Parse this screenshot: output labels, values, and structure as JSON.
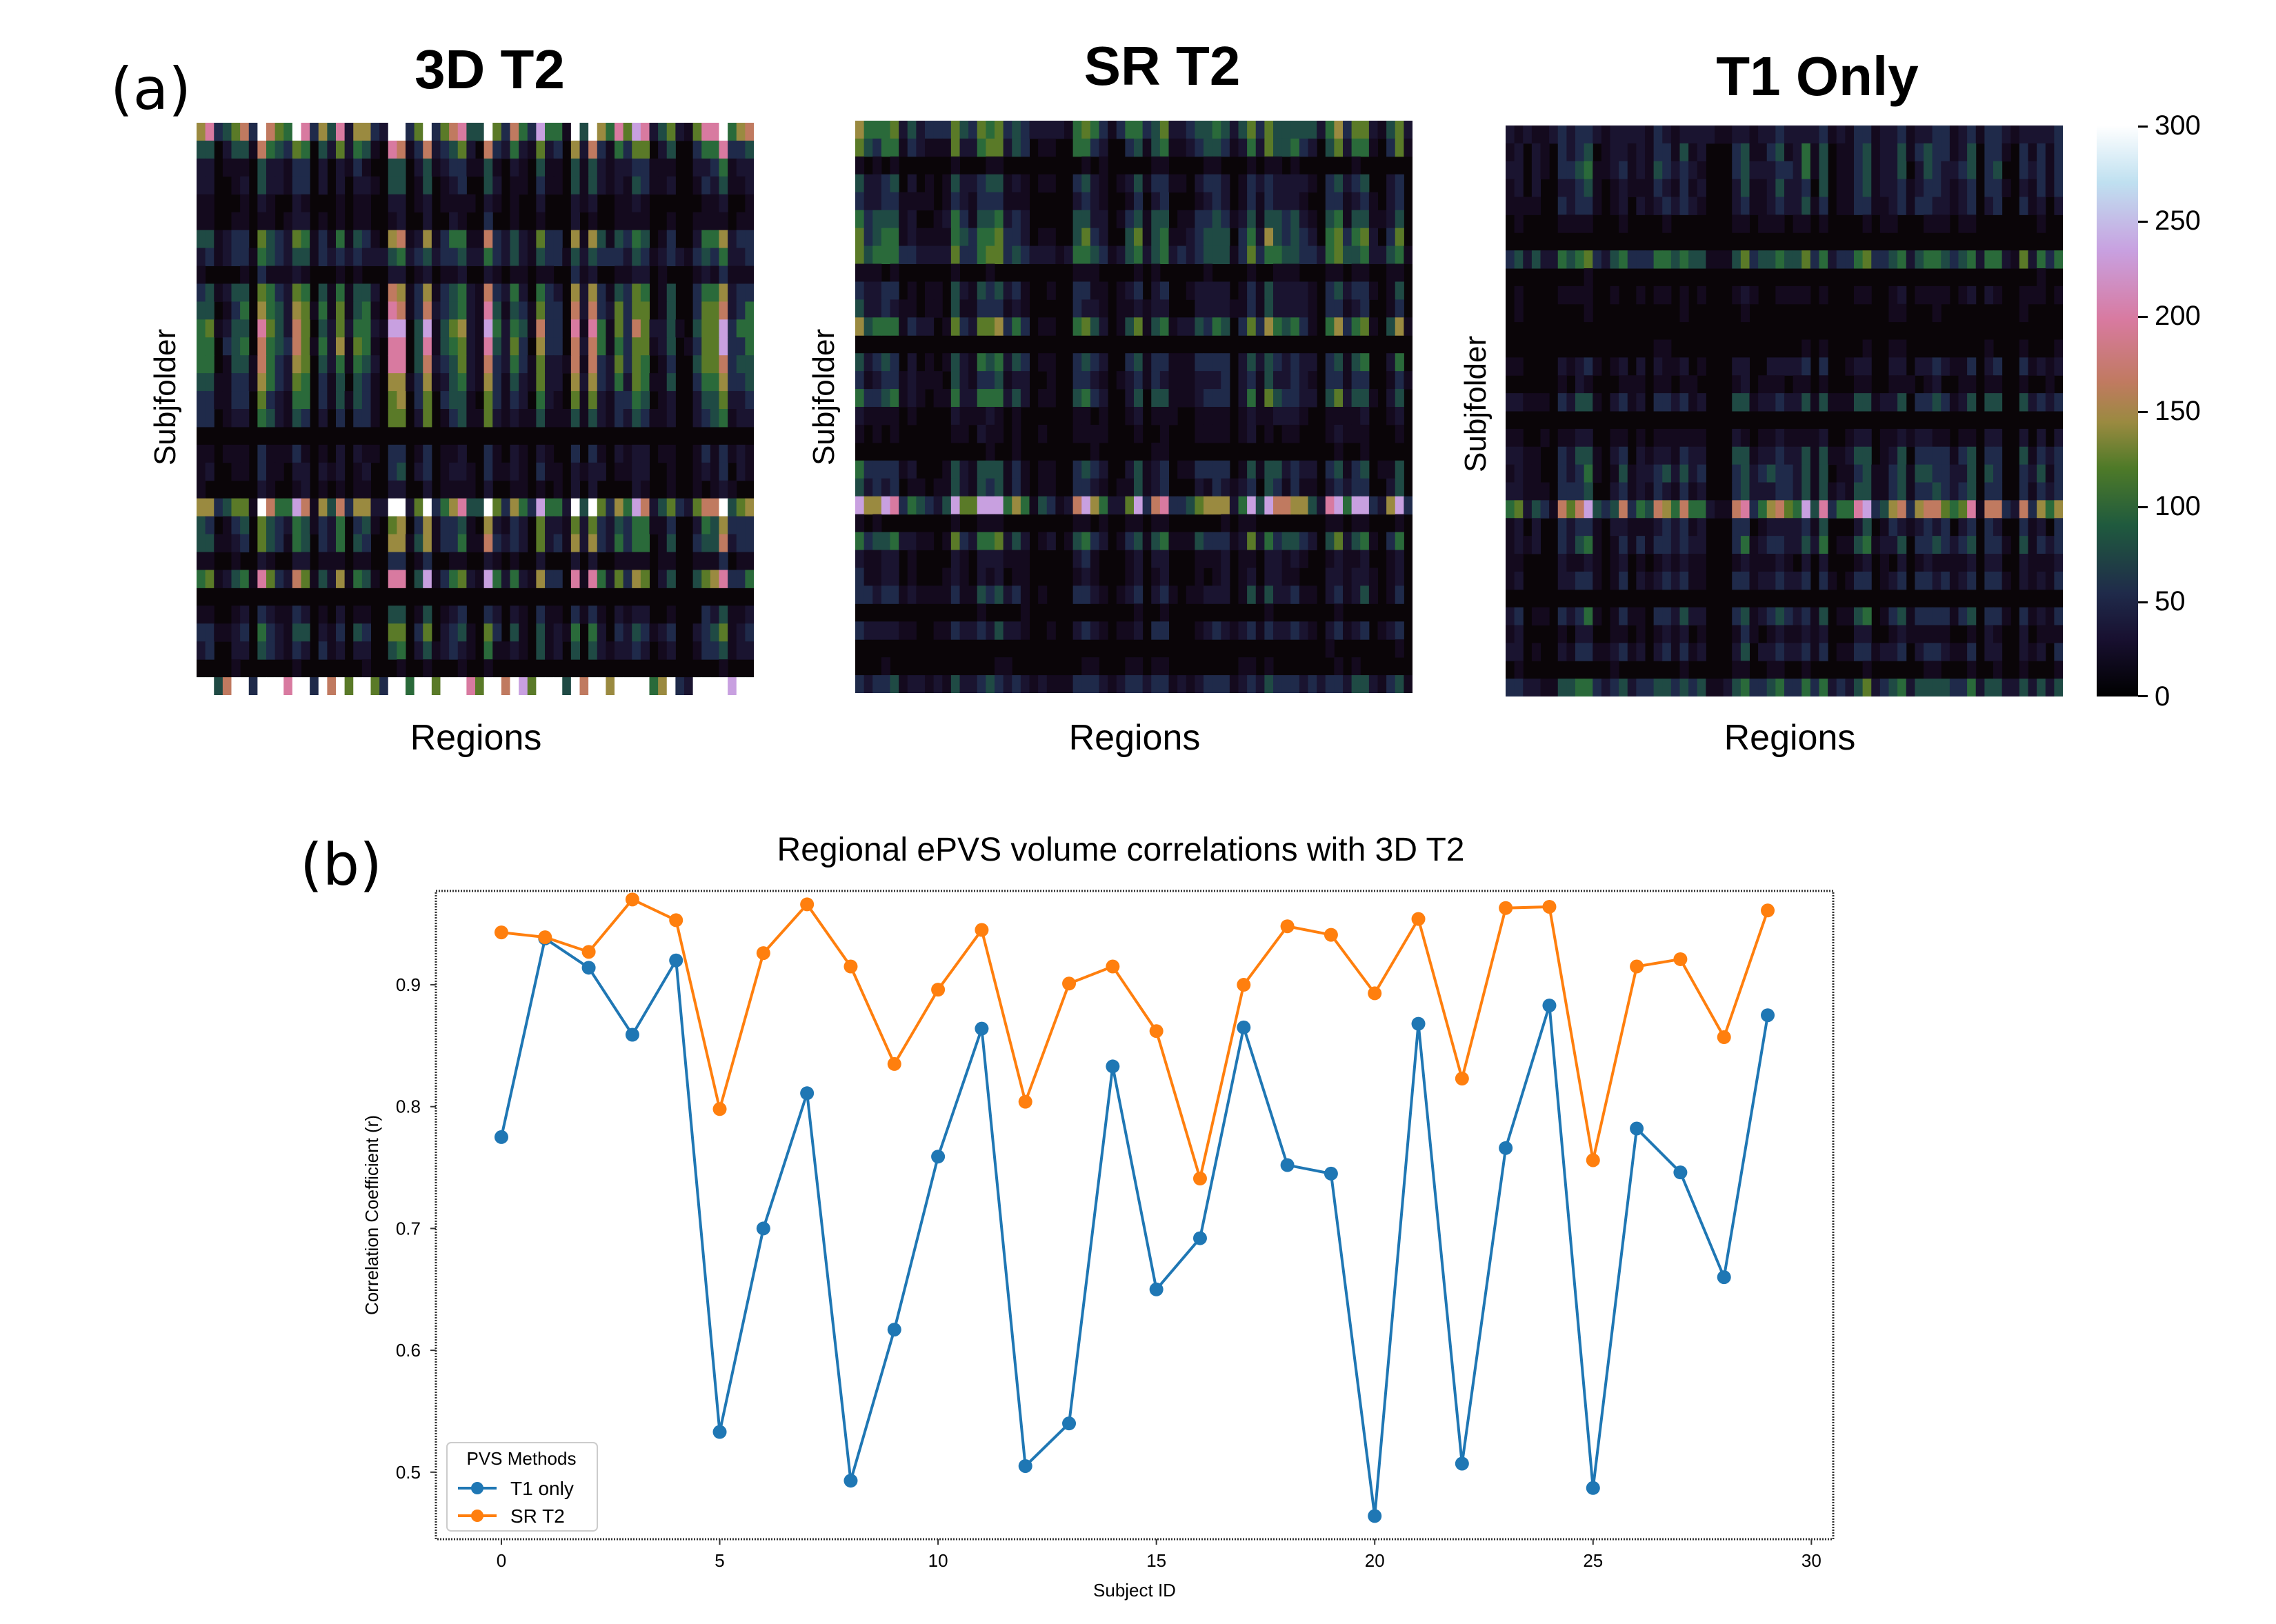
{
  "panel_a_label": "(a)",
  "panel_b_label": "(b)",
  "heatmaps": [
    {
      "title": "3D T2",
      "xlabel": "Regions",
      "ylabel": "Subjfolder",
      "seed": 7,
      "intensity": 1.0
    },
    {
      "title": "SR T2",
      "xlabel": "Regions",
      "ylabel": "Subjfolder",
      "seed": 19,
      "intensity": 0.7
    },
    {
      "title": "T1 Only",
      "xlabel": "Regions",
      "ylabel": "Subjfolder",
      "seed": 31,
      "intensity": 0.5
    }
  ],
  "colorbar": {
    "ticks": [
      "300",
      "250",
      "200",
      "150",
      "100",
      "50",
      "0"
    ],
    "min": 0,
    "max": 300
  },
  "chart_data": {
    "type": "line",
    "title": "Regional ePVS volume correlations with 3D T2",
    "xlabel": "Subject ID",
    "ylabel": "Correlation Coefficient (r)",
    "xlim": [
      -1.5,
      30.5
    ],
    "ylim": [
      0.445,
      0.977
    ],
    "xticks": [
      "0",
      "5",
      "10",
      "15",
      "20",
      "25",
      "30"
    ],
    "yticks": [
      "0.5",
      "0.6",
      "0.7",
      "0.8",
      "0.9"
    ],
    "legend_title": "PVS Methods",
    "legend_position": "lower-left",
    "x": [
      0,
      1,
      2,
      3,
      4,
      5,
      6,
      7,
      8,
      9,
      10,
      11,
      12,
      13,
      14,
      15,
      16,
      17,
      18,
      19,
      20,
      21,
      22,
      23,
      24,
      25,
      26,
      27,
      28,
      29
    ],
    "series": [
      {
        "name": "T1 only",
        "color": "#1f77b4",
        "values": [
          0.775,
          0.938,
          0.914,
          0.859,
          0.92,
          0.533,
          0.7,
          0.811,
          0.493,
          0.617,
          0.759,
          0.864,
          0.505,
          0.54,
          0.833,
          0.65,
          0.692,
          0.865,
          0.752,
          0.745,
          0.464,
          0.868,
          0.507,
          0.766,
          0.883,
          0.487,
          0.782,
          0.746,
          0.66,
          0.875
        ]
      },
      {
        "name": "SR T2",
        "color": "#ff7f0e",
        "values": [
          0.943,
          0.939,
          0.927,
          0.97,
          0.953,
          0.798,
          0.926,
          0.966,
          0.915,
          0.835,
          0.896,
          0.945,
          0.804,
          0.901,
          0.915,
          0.862,
          0.741,
          0.9,
          0.948,
          0.941,
          0.893,
          0.954,
          0.823,
          0.963,
          0.964,
          0.756,
          0.915,
          0.921,
          0.857,
          0.961
        ]
      }
    ]
  }
}
